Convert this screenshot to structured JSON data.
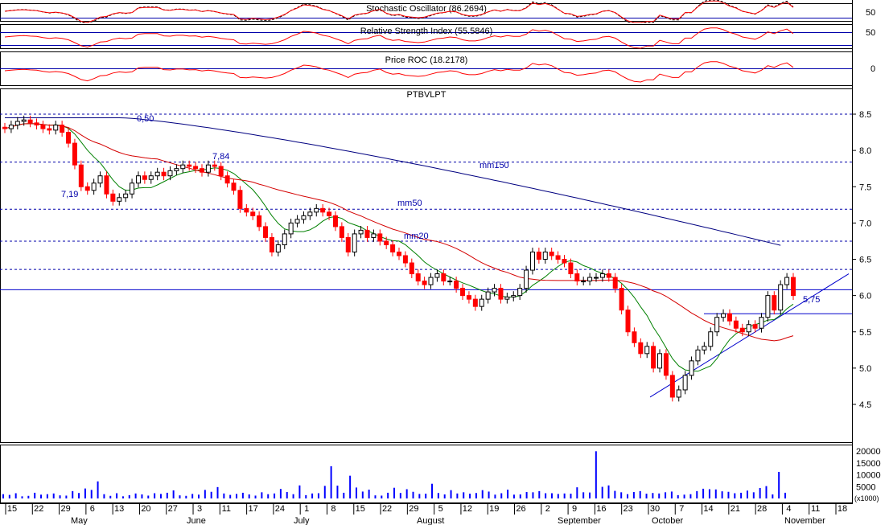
{
  "panels": {
    "stochastic": {
      "label": "Stochastic Oscillator (86.2694)",
      "tick": "50"
    },
    "rsi": {
      "label": "Relative Strength Index (55.5846)",
      "tick": "50"
    },
    "roc": {
      "label": "Price ROC (18.2178)",
      "tick": "0"
    },
    "price": {
      "label": "PTBVLPT"
    },
    "volume": {
      "unit": "(x1000)"
    }
  },
  "colors": {
    "up": "#000000",
    "down": "#ff0000",
    "ma20": "#008000",
    "ma50": "#d40000",
    "ma150": "#000080",
    "levels": "#0000aa",
    "volume": "#0000ff",
    "indicator": "#ff0000"
  },
  "chart_data": {
    "type": "candlestick",
    "symbol": "PTBVLPT",
    "ylim": [
      4.3,
      8.8
    ],
    "y_ticks": [
      "8.5",
      "8.0",
      "7.5",
      "7.0",
      "6.5",
      "6.0",
      "5.5",
      "5.0",
      "4.5"
    ],
    "day_ticks": [
      "15",
      "22",
      "29",
      "6",
      "13",
      "20",
      "27",
      "3",
      "11",
      "17",
      "24",
      "1",
      "8",
      "15",
      "22",
      "29",
      "5",
      "12",
      "19",
      "26",
      "2",
      "9",
      "16",
      "23",
      "30",
      "7",
      "14",
      "21",
      "28",
      "4",
      "11",
      "18"
    ],
    "month_labels": [
      "May",
      "June",
      "July",
      "August",
      "September",
      "October",
      "November"
    ],
    "level_lines": [
      8.5,
      7.84,
      7.19,
      6.75,
      6.36
    ],
    "level_labels": [
      "0,50",
      "7,84",
      "7,19",
      "5,75"
    ],
    "ma_labels": [
      "mm150",
      "mm50",
      "mm20"
    ],
    "horizontal_lines": [
      6.08,
      5.75
    ],
    "trendline": {
      "from": [
        4.6,
        "Sep 30"
      ],
      "to": [
        6.3,
        "Nov 20"
      ]
    },
    "closes": [
      8.3,
      8.35,
      8.4,
      8.42,
      8.38,
      8.35,
      8.3,
      8.28,
      8.35,
      8.25,
      8.1,
      7.8,
      7.5,
      7.45,
      7.55,
      7.65,
      7.4,
      7.3,
      7.35,
      7.4,
      7.55,
      7.65,
      7.6,
      7.65,
      7.7,
      7.65,
      7.72,
      7.75,
      7.8,
      7.78,
      7.75,
      7.7,
      7.8,
      7.78,
      7.65,
      7.55,
      7.45,
      7.2,
      7.15,
      7.1,
      6.95,
      6.8,
      6.6,
      6.7,
      6.85,
      7.0,
      7.05,
      7.1,
      7.15,
      7.2,
      7.15,
      7.1,
      6.95,
      6.8,
      6.6,
      6.85,
      6.9,
      6.8,
      6.85,
      6.75,
      6.7,
      6.6,
      6.55,
      6.45,
      6.3,
      6.2,
      6.15,
      6.25,
      6.3,
      6.2,
      6.2,
      6.1,
      6.0,
      5.95,
      5.85,
      5.95,
      6.05,
      6.1,
      5.95,
      5.98,
      6.0,
      6.1,
      6.35,
      6.6,
      6.5,
      6.6,
      6.55,
      6.5,
      6.45,
      6.3,
      6.2,
      6.2,
      6.25,
      6.25,
      6.3,
      6.25,
      6.1,
      5.8,
      5.5,
      5.35,
      5.2,
      5.3,
      5.0,
      5.2,
      4.9,
      4.6,
      4.7,
      4.9,
      5.1,
      5.25,
      5.3,
      5.5,
      5.7,
      5.75,
      5.65,
      5.55,
      5.5,
      5.6,
      5.55,
      5.7,
      6.0,
      5.8,
      6.15,
      6.25,
      6.0
    ],
    "volume_ticks": [
      "20000",
      "15000",
      "10000",
      "5000"
    ],
    "volumes": [
      1800,
      1500,
      2200,
      900,
      1100,
      2400,
      1600,
      1800,
      2100,
      1300,
      1200,
      3100,
      2300,
      4200,
      3600,
      7200,
      1800,
      1100,
      2200,
      900,
      1400,
      2100,
      1700,
      1200,
      2200,
      1900,
      2400,
      3400,
      1300,
      1100,
      1900,
      1600,
      3600,
      2800,
      4800,
      2100,
      1500,
      1900,
      2400,
      1700,
      1200,
      2600,
      1800,
      2100,
      4000,
      2700,
      1800,
      5500,
      1400,
      2100,
      2200,
      5300,
      13600,
      5400,
      2400,
      9600,
      4600,
      2900,
      3700,
      1300,
      1200,
      2400,
      4500,
      2300,
      3900,
      2800,
      1900,
      2000,
      6200,
      2300,
      1700,
      3500,
      2100,
      2600,
      2000,
      2300,
      3500,
      2900,
      1600,
      2200,
      3700,
      1600,
      1700,
      2700,
      2600,
      3100,
      2200,
      2200,
      1900,
      2100,
      2000,
      4700,
      2600,
      2500,
      19900,
      4900,
      5500,
      3200,
      2600,
      1800,
      2700,
      3100,
      2000,
      2300,
      2100,
      2600,
      2900,
      1400,
      1600,
      1800,
      3100,
      4100,
      3900,
      3800,
      3000,
      2800,
      2200,
      2400,
      3300,
      2600,
      4400,
      5200,
      1700,
      11200,
      2400
    ]
  }
}
